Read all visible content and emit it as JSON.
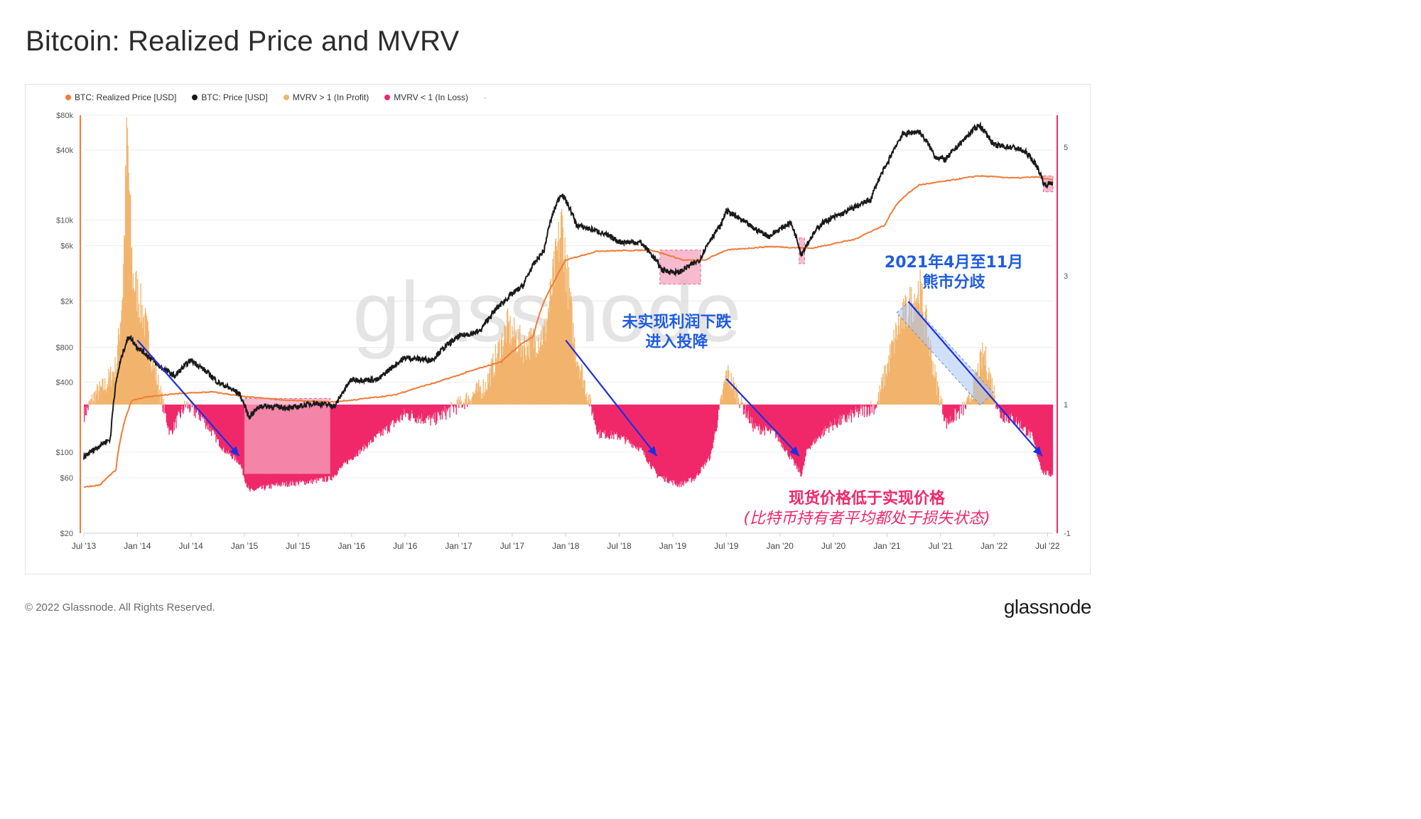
{
  "title": "Bitcoin: Realized Price and MVRV",
  "legend": [
    {
      "label": "BTC: Realized Price [USD]",
      "color": "#f07b39"
    },
    {
      "label": "BTC: Price [USD]",
      "color": "#1a1a1a"
    },
    {
      "label": "MVRV > 1 (In Profit)",
      "color": "#f2b46d"
    },
    {
      "label": "MVRV < 1 (In Loss)",
      "color": "#f0286a"
    }
  ],
  "legend_trailing": "-",
  "watermark": "glassnode",
  "annotations": {
    "capitulation_line1": "未实现利润下跌",
    "capitulation_line2": "进入投降",
    "divergence_line1": "2021年4月至11月",
    "divergence_line2": "熊市分歧",
    "loss_line1": "现货价格低于实现价格",
    "loss_line2": "(比特币持有者平均都处于损失状态)"
  },
  "footer": "© 2022 Glassnode. All Rights Reserved.",
  "brand": "glassnode",
  "chart_data": {
    "type": "line",
    "title": "Bitcoin: Realized Price and MVRV",
    "x_ticks": [
      "Jul '13",
      "Jan '14",
      "Jul '14",
      "Jan '15",
      "Jul '15",
      "Jan '16",
      "Jul '16",
      "Jan '17",
      "Jul '17",
      "Jan '18",
      "Jul '18",
      "Jan '19",
      "Jul '19",
      "Jan '20",
      "Jul '20",
      "Jan '21",
      "Jul '21",
      "Jan '22",
      "Jul '22"
    ],
    "x_range": [
      2013.5,
      2022.55
    ],
    "y_left": {
      "scale": "log",
      "range": [
        20,
        80000
      ],
      "ticks": [
        {
          "v": 20,
          "label": "$20"
        },
        {
          "v": 60,
          "label": "$60"
        },
        {
          "v": 100,
          "label": "$100"
        },
        {
          "v": 400,
          "label": "$400"
        },
        {
          "v": 800,
          "label": "$800"
        },
        {
          "v": 2000,
          "label": "$2k"
        },
        {
          "v": 6000,
          "label": "$6k"
        },
        {
          "v": 10000,
          "label": "$10k"
        },
        {
          "v": 40000,
          "label": "$40k"
        },
        {
          "v": 80000,
          "label": "$80k"
        }
      ]
    },
    "y_right": {
      "scale": "linear",
      "range": [
        -1,
        5.5
      ],
      "ticks": [
        {
          "v": -1,
          "label": "-1"
        },
        {
          "v": 1,
          "label": "1"
        },
        {
          "v": 3,
          "label": "3"
        },
        {
          "v": 5,
          "label": "5"
        }
      ]
    },
    "series": [
      {
        "name": "BTC: Price [USD]",
        "axis": "left",
        "color": "#1a1a1a",
        "points": [
          [
            2013.5,
            90
          ],
          [
            2013.75,
            130
          ],
          [
            2013.92,
            1000
          ],
          [
            2014.0,
            800
          ],
          [
            2014.2,
            550
          ],
          [
            2014.35,
            450
          ],
          [
            2014.5,
            620
          ],
          [
            2014.75,
            400
          ],
          [
            2014.95,
            320
          ],
          [
            2015.04,
            200
          ],
          [
            2015.15,
            250
          ],
          [
            2015.45,
            240
          ],
          [
            2015.65,
            265
          ],
          [
            2015.85,
            250
          ],
          [
            2016.0,
            420
          ],
          [
            2016.25,
            420
          ],
          [
            2016.5,
            650
          ],
          [
            2016.75,
            620
          ],
          [
            2017.0,
            990
          ],
          [
            2017.2,
            1100
          ],
          [
            2017.4,
            1900
          ],
          [
            2017.6,
            2700
          ],
          [
            2017.8,
            5500
          ],
          [
            2017.96,
            17000
          ],
          [
            2018.1,
            9000
          ],
          [
            2018.3,
            8000
          ],
          [
            2018.5,
            6500
          ],
          [
            2018.7,
            6400
          ],
          [
            2018.9,
            3700
          ],
          [
            2019.05,
            3500
          ],
          [
            2019.25,
            4500
          ],
          [
            2019.45,
            9000
          ],
          [
            2019.5,
            12000
          ],
          [
            2019.75,
            8500
          ],
          [
            2019.9,
            7200
          ],
          [
            2020.1,
            9500
          ],
          [
            2020.2,
            5000
          ],
          [
            2020.4,
            9500
          ],
          [
            2020.6,
            11500
          ],
          [
            2020.85,
            15000
          ],
          [
            2021.0,
            30000
          ],
          [
            2021.15,
            55000
          ],
          [
            2021.3,
            58000
          ],
          [
            2021.45,
            35000
          ],
          [
            2021.55,
            33000
          ],
          [
            2021.7,
            47000
          ],
          [
            2021.86,
            66000
          ],
          [
            2022.0,
            44000
          ],
          [
            2022.2,
            42000
          ],
          [
            2022.3,
            38000
          ],
          [
            2022.4,
            29000
          ],
          [
            2022.47,
            20000
          ],
          [
            2022.55,
            21000
          ]
        ]
      },
      {
        "name": "BTC: Realized Price [USD]",
        "axis": "left",
        "color": "#f07b39",
        "points": [
          [
            2013.5,
            50
          ],
          [
            2013.65,
            52
          ],
          [
            2013.8,
            70
          ],
          [
            2013.95,
            280
          ],
          [
            2014.1,
            300
          ],
          [
            2014.4,
            320
          ],
          [
            2014.7,
            330
          ],
          [
            2015.0,
            300
          ],
          [
            2015.4,
            280
          ],
          [
            2015.8,
            270
          ],
          [
            2016.0,
            280
          ],
          [
            2016.4,
            310
          ],
          [
            2016.8,
            400
          ],
          [
            2017.0,
            460
          ],
          [
            2017.4,
            600
          ],
          [
            2017.7,
            1000
          ],
          [
            2017.9,
            3000
          ],
          [
            2018.0,
            4500
          ],
          [
            2018.3,
            5400
          ],
          [
            2018.8,
            5500
          ],
          [
            2019.1,
            4500
          ],
          [
            2019.3,
            4500
          ],
          [
            2019.5,
            5500
          ],
          [
            2019.9,
            5900
          ],
          [
            2020.3,
            5700
          ],
          [
            2020.7,
            6800
          ],
          [
            2020.98,
            9000
          ],
          [
            2021.1,
            14000
          ],
          [
            2021.3,
            20000
          ],
          [
            2021.6,
            22000
          ],
          [
            2021.85,
            24000
          ],
          [
            2022.2,
            23000
          ],
          [
            2022.4,
            23500
          ],
          [
            2022.55,
            22000
          ]
        ]
      },
      {
        "name": "MVRV",
        "axis": "right",
        "profit_color": "#f2b46d",
        "loss_color": "#f0286a",
        "points": [
          [
            2013.5,
            0.85
          ],
          [
            2013.6,
            1.15
          ],
          [
            2013.7,
            1.3
          ],
          [
            2013.8,
            1.6
          ],
          [
            2013.86,
            2.8
          ],
          [
            2013.9,
            5.2
          ],
          [
            2013.95,
            3.0
          ],
          [
            2014.05,
            2.4
          ],
          [
            2014.15,
            1.6
          ],
          [
            2014.3,
            0.55
          ],
          [
            2014.45,
            1.0
          ],
          [
            2014.6,
            0.8
          ],
          [
            2014.8,
            0.3
          ],
          [
            2014.95,
            0.1
          ],
          [
            2015.04,
            -0.35
          ],
          [
            2015.3,
            -0.25
          ],
          [
            2015.6,
            -0.2
          ],
          [
            2015.8,
            -0.15
          ],
          [
            2015.95,
            0.1
          ],
          [
            2016.2,
            0.45
          ],
          [
            2016.5,
            0.85
          ],
          [
            2016.75,
            0.75
          ],
          [
            2017.0,
            1.0
          ],
          [
            2017.25,
            1.3
          ],
          [
            2017.45,
            2.2
          ],
          [
            2017.6,
            1.9
          ],
          [
            2017.8,
            2.1
          ],
          [
            2017.96,
            3.8
          ],
          [
            2018.08,
            1.9
          ],
          [
            2018.3,
            0.55
          ],
          [
            2018.5,
            0.5
          ],
          [
            2018.7,
            0.3
          ],
          [
            2018.85,
            -0.1
          ],
          [
            2019.05,
            -0.25
          ],
          [
            2019.2,
            -0.15
          ],
          [
            2019.35,
            0.2
          ],
          [
            2019.5,
            1.5
          ],
          [
            2019.75,
            0.65
          ],
          [
            2019.95,
            0.55
          ],
          [
            2020.2,
            -0.1
          ],
          [
            2020.25,
            0.3
          ],
          [
            2020.45,
            0.65
          ],
          [
            2020.7,
            0.85
          ],
          [
            2020.9,
            1.0
          ],
          [
            2021.1,
            2.2
          ],
          [
            2021.3,
            2.8
          ],
          [
            2021.45,
            1.4
          ],
          [
            2021.55,
            0.7
          ],
          [
            2021.75,
            1.0
          ],
          [
            2021.9,
            1.8
          ],
          [
            2022.05,
            0.85
          ],
          [
            2022.2,
            0.75
          ],
          [
            2022.35,
            0.5
          ],
          [
            2022.45,
            -0.05
          ],
          [
            2022.55,
            -0.1
          ]
        ]
      }
    ],
    "highlight_boxes": [
      {
        "from": 2015.0,
        "to": 2015.8,
        "color": "#f5a3bd"
      },
      {
        "from": 2018.88,
        "to": 2019.26,
        "color": "#f5a3bd"
      },
      {
        "from": 2020.18,
        "to": 2020.23,
        "color": "#f5a3bd"
      },
      {
        "from": 2022.46,
        "to": 2022.55,
        "color": "#f5a3bd"
      }
    ],
    "trend_arrows": [
      {
        "from": [
          2014.0,
          2.0
        ],
        "to": [
          2014.95,
          0.2
        ]
      },
      {
        "from": [
          2018.0,
          2.0
        ],
        "to": [
          2018.85,
          0.2
        ]
      },
      {
        "from": [
          2019.5,
          1.4
        ],
        "to": [
          2020.18,
          0.2
        ]
      },
      {
        "from": [
          2021.2,
          2.6
        ],
        "to": [
          2022.45,
          0.2
        ]
      }
    ]
  }
}
